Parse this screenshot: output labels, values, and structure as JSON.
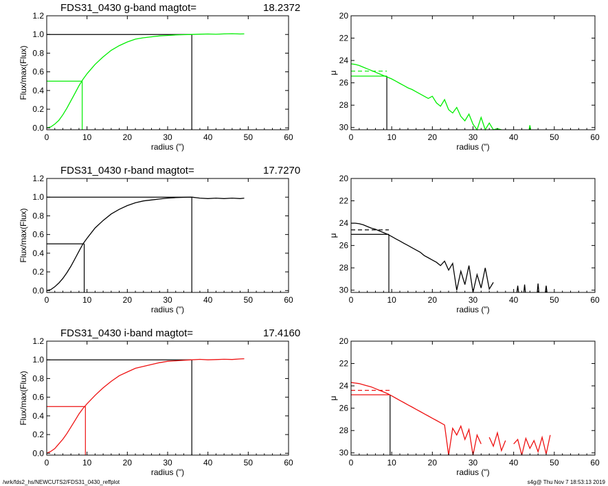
{
  "colors": {
    "g": "#00ee00",
    "r": "#000000",
    "i": "#ee1111",
    "axis": "#000000",
    "ref": "#000000"
  },
  "footer": {
    "left": "/wrk/fds2_hs/NEWCUTS2/FDS31_0430_reffplot",
    "right": "s4g@  Thu Nov  7 18:53:13 2019"
  },
  "chart_data": [
    {
      "type": "line",
      "band": "g",
      "panel": "growth-curve",
      "title": "FDS31_0430 g-band  magtot=",
      "magtot": "18.2372",
      "xlabel": "radius (\")",
      "ylabel": "Flux/max(Flux)",
      "xlim": [
        0,
        60
      ],
      "ylim": [
        -0.02,
        1.2
      ],
      "xticks": [
        0,
        10,
        20,
        30,
        40,
        50,
        60
      ],
      "yticks": [
        "0.0",
        "0.2",
        "0.4",
        "0.6",
        "0.8",
        "1.0",
        "1.2"
      ],
      "grid": false,
      "series": [
        {
          "x": [
            0,
            1,
            2,
            3,
            4,
            5,
            6,
            7,
            8,
            9,
            10,
            12,
            14,
            16,
            18,
            20,
            22,
            24,
            26,
            28,
            30,
            32,
            34,
            36,
            38,
            40,
            42,
            44,
            46,
            48,
            49
          ],
          "y": [
            0,
            0.01,
            0.04,
            0.08,
            0.14,
            0.21,
            0.29,
            0.37,
            0.45,
            0.52,
            0.58,
            0.68,
            0.76,
            0.83,
            0.88,
            0.92,
            0.95,
            0.965,
            0.975,
            0.985,
            0.99,
            0.995,
            0.998,
            1.0,
            1.003,
            1.005,
            1.002,
            1.006,
            1.008,
            1.005,
            1.006
          ]
        }
      ],
      "half_light": {
        "radius": 8.8,
        "flux": 0.5
      },
      "total_radius": 36
    },
    {
      "type": "line",
      "band": "g",
      "panel": "surface-brightness",
      "xlabel": "radius (\")",
      "ylabel": "μ",
      "xlim": [
        0,
        60
      ],
      "ylim": [
        30.2,
        20
      ],
      "xticks": [
        0,
        10,
        20,
        30,
        40,
        50,
        60
      ],
      "yticks": [
        "20",
        "22",
        "24",
        "26",
        "28",
        "30"
      ],
      "grid": false,
      "series": [
        {
          "x": [
            0,
            1,
            2,
            3,
            4,
            5,
            6,
            7,
            8,
            9,
            10,
            11,
            12,
            13,
            14,
            15,
            16,
            17,
            18,
            19,
            20,
            21,
            22,
            23,
            24,
            25,
            26,
            27,
            28,
            29,
            30,
            31,
            32,
            33,
            34,
            35,
            36,
            37
          ],
          "y": [
            24.3,
            24.35,
            24.45,
            24.6,
            24.75,
            24.9,
            25.05,
            25.2,
            25.35,
            25.5,
            25.65,
            25.85,
            26.05,
            26.25,
            26.45,
            26.6,
            26.8,
            27.0,
            27.2,
            27.4,
            27.2,
            27.8,
            28.1,
            27.5,
            28.4,
            28.7,
            28.2,
            29.0,
            29.4,
            28.8,
            29.7,
            30.2,
            29.1,
            30.2,
            29.6,
            30.2,
            30.1,
            30.2
          ]
        },
        {
          "x": [
            43.8,
            44.0,
            44.2
          ],
          "y": [
            30.2,
            29.8,
            30.2
          ]
        }
      ],
      "mu_total": 25.4,
      "mu_mean": 24.95,
      "half_light_radius": 8.8
    },
    {
      "type": "line",
      "band": "r",
      "panel": "growth-curve",
      "title": "FDS31_0430 r-band  magtot=",
      "magtot": "17.7270",
      "xlabel": "radius (\")",
      "ylabel": "Flux/max(Flux)",
      "xlim": [
        0,
        60
      ],
      "ylim": [
        -0.02,
        1.2
      ],
      "xticks": [
        0,
        10,
        20,
        30,
        40,
        50,
        60
      ],
      "yticks": [
        "0.0",
        "0.2",
        "0.4",
        "0.6",
        "0.8",
        "1.0",
        "1.2"
      ],
      "grid": false,
      "series": [
        {
          "x": [
            0,
            1,
            2,
            3,
            4,
            5,
            6,
            7,
            8,
            9,
            10,
            12,
            14,
            16,
            18,
            20,
            22,
            24,
            26,
            28,
            30,
            32,
            34,
            36,
            38,
            40,
            42,
            44,
            46,
            48,
            49
          ],
          "y": [
            0,
            0.01,
            0.04,
            0.08,
            0.13,
            0.19,
            0.26,
            0.34,
            0.42,
            0.5,
            0.56,
            0.67,
            0.75,
            0.82,
            0.87,
            0.91,
            0.94,
            0.96,
            0.97,
            0.98,
            0.99,
            0.995,
            0.998,
            1.0,
            0.99,
            0.985,
            0.99,
            0.985,
            0.99,
            0.985,
            0.99
          ]
        }
      ],
      "half_light": {
        "radius": 9.3,
        "flux": 0.5
      },
      "total_radius": 36
    },
    {
      "type": "line",
      "band": "r",
      "panel": "surface-brightness",
      "xlabel": "radius (\")",
      "ylabel": "μ",
      "xlim": [
        0,
        60
      ],
      "ylim": [
        30.2,
        20
      ],
      "xticks": [
        0,
        10,
        20,
        30,
        40,
        50,
        60
      ],
      "yticks": [
        "20",
        "22",
        "24",
        "26",
        "28",
        "30"
      ],
      "grid": false,
      "series": [
        {
          "x": [
            0,
            1,
            2,
            3,
            4,
            5,
            6,
            7,
            8,
            9,
            10,
            11,
            12,
            13,
            14,
            15,
            16,
            17,
            18,
            19,
            20,
            21,
            22,
            23,
            24,
            25,
            26,
            27,
            28,
            29,
            30,
            31,
            32,
            33,
            34,
            35
          ],
          "y": [
            24.0,
            24.0,
            24.05,
            24.15,
            24.3,
            24.45,
            24.55,
            24.7,
            24.85,
            25.0,
            25.2,
            25.4,
            25.6,
            25.8,
            26.0,
            26.2,
            26.4,
            26.6,
            26.9,
            27.1,
            27.3,
            27.5,
            27.8,
            27.4,
            28.2,
            27.6,
            30.0,
            28.3,
            29.5,
            27.8,
            30.2,
            28.6,
            29.8,
            28.0,
            29.9,
            29.3
          ]
        },
        {
          "x": [
            40.8,
            41.0,
            41.2
          ],
          "y": [
            30.2,
            29.6,
            30.2
          ]
        },
        {
          "x": [
            42.5,
            42.7,
            42.9
          ],
          "y": [
            30.2,
            29.5,
            30.2
          ]
        },
        {
          "x": [
            45.8,
            46.0,
            46.2
          ],
          "y": [
            30.2,
            29.4,
            30.2
          ]
        },
        {
          "x": [
            47.8,
            48.0,
            48.2
          ],
          "y": [
            30.2,
            29.6,
            30.2
          ]
        }
      ],
      "mu_total": 25.0,
      "mu_mean": 24.6,
      "half_light_radius": 9.3
    },
    {
      "type": "line",
      "band": "i",
      "panel": "growth-curve",
      "title": "FDS31_0430 i-band  magtot=",
      "magtot": "17.4160",
      "xlabel": "radius (\")",
      "ylabel": "Flux/max(Flux)",
      "xlim": [
        0,
        60
      ],
      "ylim": [
        -0.02,
        1.2
      ],
      "xticks": [
        0,
        10,
        20,
        30,
        40,
        50,
        60
      ],
      "yticks": [
        "0.0",
        "0.2",
        "0.4",
        "0.6",
        "0.8",
        "1.0",
        "1.2"
      ],
      "grid": false,
      "series": [
        {
          "x": [
            0,
            1,
            2,
            3,
            4,
            5,
            6,
            7,
            8,
            9,
            10,
            12,
            14,
            16,
            18,
            20,
            22,
            24,
            26,
            28,
            30,
            32,
            34,
            36,
            38,
            40,
            42,
            44,
            46,
            48,
            49
          ],
          "y": [
            0,
            0.02,
            0.05,
            0.1,
            0.15,
            0.21,
            0.28,
            0.35,
            0.42,
            0.48,
            0.53,
            0.62,
            0.7,
            0.77,
            0.83,
            0.87,
            0.91,
            0.93,
            0.95,
            0.97,
            0.985,
            0.99,
            0.995,
            1.0,
            1.005,
            1.0,
            1.003,
            1.006,
            1.004,
            1.01,
            1.012
          ]
        }
      ],
      "half_light": {
        "radius": 9.6,
        "flux": 0.5
      },
      "total_radius": 36
    },
    {
      "type": "line",
      "band": "i",
      "panel": "surface-brightness",
      "xlabel": "radius (\")",
      "ylabel": "μ",
      "xlim": [
        0,
        60
      ],
      "ylim": [
        30.2,
        20
      ],
      "xticks": [
        0,
        10,
        20,
        30,
        40,
        50,
        60
      ],
      "yticks": [
        "20",
        "22",
        "24",
        "26",
        "28",
        "30"
      ],
      "grid": false,
      "series": [
        {
          "x": [
            0,
            1,
            2,
            3,
            4,
            5,
            6,
            7,
            8,
            9,
            10,
            11,
            12,
            13,
            14,
            15,
            16,
            17,
            18,
            19,
            20,
            21,
            22,
            23,
            24,
            25,
            26,
            27,
            28,
            29,
            30,
            31,
            32
          ],
          "y": [
            23.7,
            23.75,
            23.8,
            23.9,
            24.0,
            24.1,
            24.25,
            24.4,
            24.55,
            24.7,
            24.9,
            25.1,
            25.3,
            25.5,
            25.7,
            25.9,
            26.1,
            26.3,
            26.5,
            26.7,
            26.9,
            27.1,
            27.3,
            27.5,
            30.2,
            27.8,
            28.4,
            27.6,
            28.8,
            27.9,
            30.2,
            28.4,
            29.2
          ]
        },
        {
          "x": [
            34,
            35,
            36,
            37,
            38
          ],
          "y": [
            28.6,
            29.4,
            28.2,
            29.8,
            28.9
          ]
        },
        {
          "x": [
            40,
            41,
            42,
            43,
            44,
            45,
            46,
            47,
            48,
            49
          ],
          "y": [
            29.2,
            28.8,
            30.2,
            28.7,
            29.6,
            28.9,
            29.9,
            28.6,
            30.1,
            28.4
          ]
        }
      ],
      "mu_total": 24.8,
      "mu_mean": 24.4,
      "half_light_radius": 9.6
    }
  ]
}
